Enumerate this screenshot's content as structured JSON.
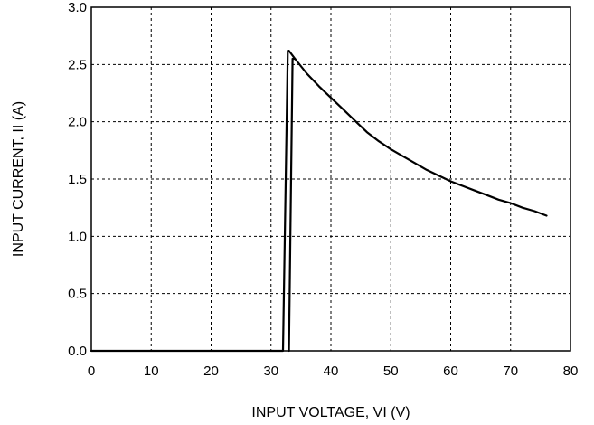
{
  "chart_data": {
    "type": "line",
    "title": "",
    "xlabel": "INPUT VOLTAGE, VI (V)",
    "ylabel": "INPUT CURRENT, II (A)",
    "xlim": [
      0,
      80
    ],
    "ylim": [
      0,
      3.0
    ],
    "xticks": [
      "0",
      "10",
      "20",
      "30",
      "40",
      "50",
      "60",
      "70",
      "80"
    ],
    "yticks": [
      "0.0",
      "0.5",
      "1.0",
      "1.5",
      "2.0",
      "2.5",
      "3.0"
    ],
    "grid": true,
    "series": [
      {
        "x": [
          0,
          32.0,
          32.8,
          33.0,
          34.0,
          36.0,
          38.0,
          40.0,
          42.0,
          44.0,
          46.0,
          48.0,
          50.0,
          52.0,
          54.0,
          56.0,
          58.0,
          60.0,
          62.0,
          64.0,
          66.0,
          68.0,
          70.0,
          72.0,
          74.0,
          76.0
        ],
        "y": [
          0.0,
          0.0,
          2.62,
          2.62,
          2.55,
          2.42,
          2.31,
          2.21,
          2.11,
          2.01,
          1.91,
          1.83,
          1.76,
          1.7,
          1.64,
          1.58,
          1.53,
          1.48,
          1.44,
          1.4,
          1.36,
          1.32,
          1.29,
          1.25,
          1.22,
          1.18
        ]
      },
      {
        "x": [
          33.0,
          33.6,
          34.0
        ],
        "y": [
          0.0,
          2.55,
          2.55
        ]
      }
    ]
  }
}
